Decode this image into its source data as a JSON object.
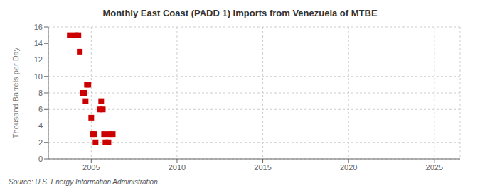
{
  "chart_data": {
    "type": "scatter",
    "title": "Monthly East Coast (PADD 1) Imports from Venezuela of MTBE",
    "ylabel": "Thousand Barrels per Day",
    "annotation": "Source: U.S. Energy Information Administration",
    "x": [
      2003.75,
      2004.08,
      2004.25,
      2004.33,
      2004.5,
      2004.58,
      2004.67,
      2004.75,
      2004.83,
      2005.0,
      2005.08,
      2005.17,
      2005.25,
      2005.5,
      2005.58,
      2005.67,
      2005.75,
      2005.83,
      2006.0,
      2006.08,
      2006.25
    ],
    "values": [
      15.0,
      15.0,
      15.0,
      13.0,
      8.0,
      8.0,
      7.0,
      9.0,
      9.0,
      5.0,
      3.0,
      3.0,
      2.0,
      6.0,
      7.0,
      6.0,
      3.0,
      2.0,
      2.0,
      3.0,
      3.0
    ],
    "color": "#cc0000",
    "marker": "square",
    "xlim": [
      2002.5,
      2026.5
    ],
    "ylim": [
      0,
      16
    ],
    "xticks": [
      2005,
      2010,
      2015,
      2020,
      2025
    ],
    "yticks": [
      0,
      2,
      4,
      6,
      8,
      10,
      12,
      14,
      16
    ],
    "grid": true
  }
}
